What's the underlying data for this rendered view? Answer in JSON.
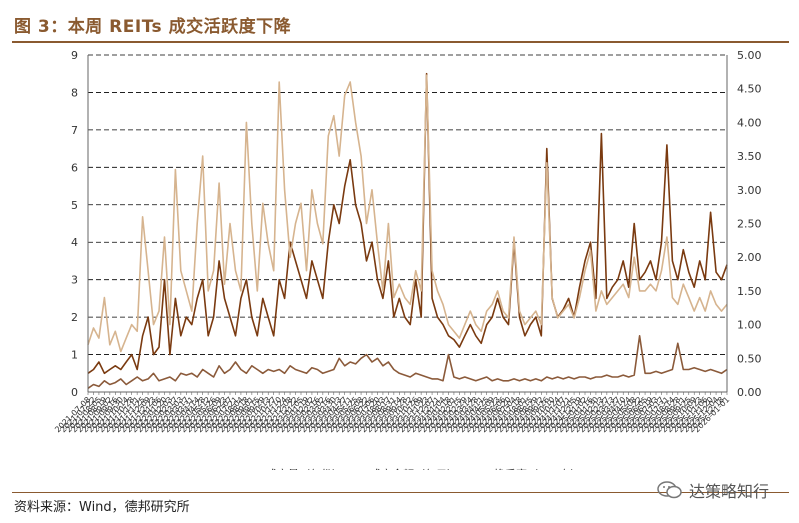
{
  "title": "图 3：本周 REITs 成交活跃度下降",
  "source": "资料来源：Wind，德邦研究所",
  "watermark": {
    "text": "达策略知行",
    "icon": "wechat-icon"
  },
  "colors": {
    "volume": "#8b5a3a",
    "amount": "#7a3a10",
    "turnover": "#d6b48f",
    "axis": "#666666",
    "grid": "#000000"
  },
  "chart_data": {
    "type": "line",
    "title": "",
    "xlabel": "",
    "ylabel": "",
    "ylim_left": [
      0,
      9
    ],
    "ylim_right": [
      0,
      5
    ],
    "yticks_left": [
      "0",
      "1",
      "2",
      "3",
      "4",
      "5",
      "6",
      "7",
      "8",
      "9"
    ],
    "yticks_right": [
      "0.00",
      "0.50",
      "1.00",
      "1.50",
      "2.00",
      "2.50",
      "3.00",
      "3.50",
      "4.00",
      "4.50",
      "5.00"
    ],
    "grid": "horizontal dashed",
    "legend_position": "bottom",
    "x_labels": [
      "2021-07-08",
      "2021-07-22",
      "2021-08-05",
      "2021-08-19",
      "2021-09-02",
      "2021-09-16",
      "2021-09-30",
      "2021-10-14",
      "2021-10-28",
      "2021-11-11",
      "2021-11-25",
      "2021-12-09",
      "2021-12-23",
      "2022-01-06",
      "2022-01-20",
      "2022-02-03",
      "2022-02-17",
      "2022-03-03",
      "2022-03-17",
      "2022-03-31",
      "2022-04-14",
      "2022-04-28",
      "2022-05-12",
      "2022-05-26",
      "2022-06-09",
      "2022-06-23",
      "2022-07-07",
      "2022-07-21",
      "2022-08-04",
      "2022-08-18",
      "2022-09-01",
      "2022-09-15",
      "2022-09-29",
      "2022-10-13",
      "2022-10-27",
      "2022-11-10",
      "2022-11-24",
      "2022-12-08",
      "2022-12-22",
      "2023-01-05",
      "2023-01-19",
      "2023-02-02",
      "2023-02-16",
      "2023-03-02",
      "2023-03-16",
      "2023-03-30",
      "2023-04-13",
      "2023-04-27",
      "2023-05-11",
      "2023-05-25",
      "2023-06-08",
      "2023-06-22",
      "2023-07-06",
      "2023-07-20",
      "2023-08-03",
      "2023-08-17",
      "2023-08-31",
      "2023-09-14",
      "2023-09-28",
      "2023-10-12",
      "2023-10-26",
      "2023-11-09",
      "2023-11-23",
      "2023-12-07",
      "2023-12-21",
      "2024-01-04",
      "2024-01-18",
      "2024-02-01",
      "2024-02-15",
      "2024-02-29",
      "2024-03-14",
      "2024-03-28",
      "2024-04-11",
      "2024-04-25",
      "2024-05-09",
      "2024-05-23",
      "2024-06-06",
      "2024-06-20",
      "2024-07-04",
      "2024-07-18",
      "2024-08-01",
      "2024-08-15",
      "2024-08-29",
      "2024-09-12",
      "2024-09-26",
      "2024-10-10",
      "2024-10-24",
      "2024-11-07",
      "2024-11-21",
      "2024-12-05",
      "2024-12-19",
      "2025-01-02",
      "2025-01-16",
      "2025-01-30",
      "2025-02-13",
      "2025-02-27",
      "2025-03-13",
      "2025-03-27",
      "2025-04-10",
      "2025-04-24",
      "2025-05-08",
      "2025-05-22",
      "2025-06-05",
      "2025-06-19",
      "2025-07-03",
      "2025-07-17",
      "2025-07-31",
      "2025-08-14",
      "2025-08-28",
      "2025-09-11",
      "2025-09-25",
      "2025-10-09",
      "2025-10-23",
      "2025-11-06",
      "2025-11-20",
      "2025-12-04",
      "2025-12-18",
      "2026-01-01"
    ],
    "series": [
      {
        "name": "成交量（亿份）",
        "axis": "left",
        "color": "#8b5a3a",
        "values": [
          0.1,
          0.2,
          0.15,
          0.3,
          0.2,
          0.25,
          0.35,
          0.2,
          0.3,
          0.4,
          0.3,
          0.35,
          0.5,
          0.3,
          0.35,
          0.4,
          0.3,
          0.5,
          0.45,
          0.5,
          0.4,
          0.6,
          0.5,
          0.4,
          0.7,
          0.5,
          0.6,
          0.8,
          0.6,
          0.5,
          0.7,
          0.6,
          0.5,
          0.6,
          0.55,
          0.6,
          0.5,
          0.7,
          0.6,
          0.55,
          0.5,
          0.65,
          0.6,
          0.5,
          0.55,
          0.6,
          0.9,
          0.7,
          0.8,
          0.75,
          0.9,
          1.0,
          0.8,
          0.9,
          0.7,
          0.8,
          0.6,
          0.5,
          0.45,
          0.4,
          0.5,
          0.45,
          0.4,
          0.35,
          0.35,
          0.3,
          1.0,
          0.4,
          0.35,
          0.4,
          0.35,
          0.3,
          0.35,
          0.4,
          0.3,
          0.35,
          0.3,
          0.3,
          0.35,
          0.3,
          0.35,
          0.3,
          0.35,
          0.3,
          0.4,
          0.35,
          0.4,
          0.35,
          0.4,
          0.35,
          0.4,
          0.4,
          0.35,
          0.4,
          0.4,
          0.45,
          0.4,
          0.4,
          0.45,
          0.4,
          0.45,
          1.5,
          0.5,
          0.5,
          0.55,
          0.5,
          0.55,
          0.6,
          1.3,
          0.6,
          0.6,
          0.65,
          0.6,
          0.55,
          0.6,
          0.55,
          0.5,
          0.6
        ]
      },
      {
        "name": "成交金额（亿元）",
        "axis": "left",
        "color": "#7a3a10",
        "values": [
          0.5,
          0.6,
          0.8,
          0.5,
          0.6,
          0.7,
          0.6,
          0.8,
          1.0,
          0.6,
          1.5,
          2.0,
          1.0,
          1.2,
          3.0,
          1.0,
          2.5,
          1.5,
          2.0,
          1.8,
          2.5,
          3.0,
          1.5,
          2.0,
          3.5,
          2.5,
          2.0,
          1.5,
          2.5,
          3.0,
          2.0,
          1.5,
          2.5,
          2.0,
          1.5,
          3.0,
          2.5,
          4.0,
          3.5,
          3.0,
          2.5,
          3.5,
          3.0,
          2.5,
          4.0,
          5.0,
          4.5,
          5.5,
          6.2,
          5.0,
          4.5,
          3.5,
          4.0,
          3.0,
          2.5,
          3.5,
          2.0,
          2.5,
          2.0,
          1.8,
          3.0,
          2.0,
          8.5,
          2.5,
          2.0,
          1.8,
          1.5,
          1.4,
          1.2,
          1.5,
          1.8,
          1.5,
          1.3,
          1.8,
          2.0,
          2.5,
          2.0,
          1.8,
          4.0,
          2.0,
          1.5,
          1.8,
          2.0,
          1.5,
          6.5,
          2.5,
          2.0,
          2.2,
          2.5,
          2.0,
          2.8,
          3.5,
          4.0,
          2.5,
          6.9,
          2.5,
          2.8,
          3.0,
          3.5,
          2.8,
          4.5,
          3.0,
          3.2,
          3.5,
          3.0,
          4.0,
          6.6,
          3.5,
          3.0,
          3.8,
          3.2,
          2.8,
          3.5,
          3.0,
          4.8,
          3.2,
          3.0,
          3.4
        ]
      },
      {
        "name": "换手率（%，右）",
        "axis": "right",
        "color": "#d6b48f",
        "values": [
          0.7,
          0.95,
          0.8,
          1.4,
          0.7,
          0.9,
          0.6,
          0.8,
          1.0,
          0.9,
          2.6,
          1.8,
          1.0,
          1.2,
          2.3,
          1.0,
          3.3,
          1.8,
          1.5,
          1.2,
          2.5,
          3.5,
          1.5,
          1.8,
          3.1,
          1.6,
          2.5,
          1.8,
          1.5,
          4.0,
          2.5,
          1.5,
          2.8,
          2.2,
          1.8,
          4.6,
          3.0,
          2.0,
          2.5,
          2.8,
          1.8,
          3.0,
          2.5,
          2.2,
          3.8,
          4.1,
          3.5,
          4.4,
          4.6,
          4.0,
          3.5,
          2.5,
          3.0,
          2.2,
          1.5,
          2.5,
          1.4,
          1.6,
          1.4,
          1.3,
          1.8,
          1.5,
          4.7,
          1.8,
          1.5,
          1.3,
          1.0,
          0.9,
          0.8,
          1.0,
          1.2,
          1.0,
          0.9,
          1.2,
          1.3,
          1.5,
          1.2,
          1.1,
          2.3,
          1.2,
          1.0,
          1.1,
          1.2,
          1.0,
          3.4,
          1.4,
          1.1,
          1.2,
          1.3,
          1.1,
          1.4,
          1.8,
          2.1,
          1.2,
          1.5,
          1.3,
          1.4,
          1.5,
          1.6,
          1.4,
          2.0,
          1.5,
          1.5,
          1.6,
          1.5,
          1.8,
          2.3,
          1.4,
          1.3,
          1.6,
          1.4,
          1.2,
          1.4,
          1.2,
          1.5,
          1.3,
          1.2,
          1.3
        ]
      }
    ]
  }
}
